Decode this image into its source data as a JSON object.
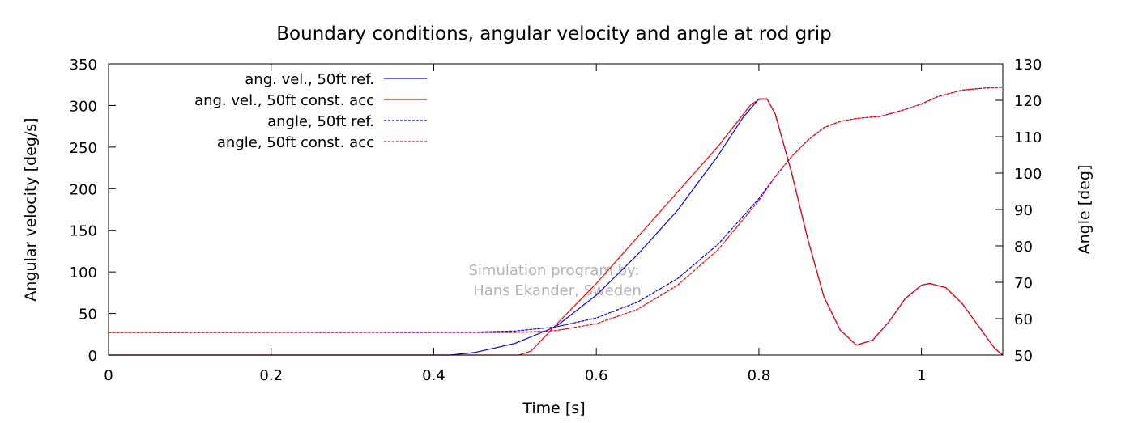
{
  "chart_data": {
    "type": "line",
    "title": "Boundary conditions, angular velocity and angle at rod grip",
    "xlabel": "Time [s]",
    "ylabel": "Angular velocity [deg/s]",
    "y2label": "Angle [deg]",
    "xlim": [
      0,
      1.1
    ],
    "ylim": [
      0,
      350
    ],
    "y2lim": [
      50,
      130
    ],
    "xticks": [
      "0",
      "0.2",
      "0.4",
      "0.6",
      "0.8",
      "1"
    ],
    "yticks": [
      "0",
      "50",
      "100",
      "150",
      "200",
      "250",
      "300",
      "350"
    ],
    "y2ticks": [
      "50",
      "60",
      "70",
      "80",
      "90",
      "100",
      "110",
      "120",
      "130"
    ],
    "grid": false,
    "legend_position": "top-left",
    "watermark": [
      "Simulation program by:",
      "Hans Ekander, Sweden"
    ],
    "series": [
      {
        "name": "ang. vel., 50ft ref.",
        "axis": "y",
        "color": "#0000ff",
        "dash": "solid",
        "points": [
          [
            0,
            0
          ],
          [
            0.42,
            0
          ],
          [
            0.45,
            3
          ],
          [
            0.5,
            14
          ],
          [
            0.55,
            34
          ],
          [
            0.6,
            72
          ],
          [
            0.65,
            120
          ],
          [
            0.7,
            174
          ],
          [
            0.75,
            240
          ],
          [
            0.78,
            285
          ],
          [
            0.8,
            308
          ],
          [
            0.81,
            308
          ],
          [
            0.82,
            290
          ],
          [
            0.84,
            220
          ],
          [
            0.86,
            140
          ],
          [
            0.88,
            70
          ],
          [
            0.9,
            30
          ],
          [
            0.92,
            12
          ],
          [
            0.94,
            18
          ],
          [
            0.96,
            40
          ],
          [
            0.98,
            68
          ],
          [
            1.0,
            84
          ],
          [
            1.01,
            86
          ],
          [
            1.03,
            81
          ],
          [
            1.05,
            62
          ],
          [
            1.07,
            35
          ],
          [
            1.09,
            8
          ],
          [
            1.1,
            0
          ]
        ]
      },
      {
        "name": "ang. vel., 50ft const. acc",
        "axis": "y",
        "color": "#ff0000",
        "dash": "solid",
        "points": [
          [
            0,
            0
          ],
          [
            0.505,
            0
          ],
          [
            0.52,
            5
          ],
          [
            0.55,
            36
          ],
          [
            0.6,
            86
          ],
          [
            0.65,
            141
          ],
          [
            0.7,
            196
          ],
          [
            0.75,
            251
          ],
          [
            0.79,
            301
          ],
          [
            0.8,
            307
          ],
          [
            0.81,
            308
          ],
          [
            0.82,
            290
          ],
          [
            0.84,
            220
          ],
          [
            0.86,
            140
          ],
          [
            0.88,
            70
          ],
          [
            0.9,
            30
          ],
          [
            0.92,
            12
          ],
          [
            0.94,
            18
          ],
          [
            0.96,
            40
          ],
          [
            0.98,
            68
          ],
          [
            1.0,
            84
          ],
          [
            1.01,
            86
          ],
          [
            1.03,
            81
          ],
          [
            1.05,
            62
          ],
          [
            1.07,
            35
          ],
          [
            1.09,
            8
          ],
          [
            1.1,
            0
          ]
        ]
      },
      {
        "name": "angle, 50ft ref.",
        "axis": "y2",
        "color": "#0000ff",
        "dash": "dashed",
        "points": [
          [
            0,
            56.2
          ],
          [
            0.45,
            56.3
          ],
          [
            0.5,
            56.6
          ],
          [
            0.55,
            57.7
          ],
          [
            0.6,
            60.2
          ],
          [
            0.65,
            64.5
          ],
          [
            0.7,
            71
          ],
          [
            0.75,
            80.5
          ],
          [
            0.8,
            93
          ],
          [
            0.82,
            99
          ],
          [
            0.84,
            104.5
          ],
          [
            0.86,
            109
          ],
          [
            0.88,
            112.5
          ],
          [
            0.9,
            114.2
          ],
          [
            0.92,
            115
          ],
          [
            0.95,
            115.6
          ],
          [
            0.98,
            117.5
          ],
          [
            1.0,
            119
          ],
          [
            1.02,
            121
          ],
          [
            1.05,
            122.8
          ],
          [
            1.08,
            123.4
          ],
          [
            1.1,
            123.6
          ]
        ]
      },
      {
        "name": "angle, 50ft const. acc",
        "axis": "y2",
        "color": "#ff0000",
        "dash": "dashed",
        "points": [
          [
            0,
            56.2
          ],
          [
            0.5,
            56.2
          ],
          [
            0.55,
            56.7
          ],
          [
            0.6,
            58.6
          ],
          [
            0.65,
            62.5
          ],
          [
            0.7,
            69.2
          ],
          [
            0.75,
            79
          ],
          [
            0.8,
            92.5
          ],
          [
            0.82,
            99
          ],
          [
            0.84,
            104.5
          ],
          [
            0.86,
            109
          ],
          [
            0.88,
            112.5
          ],
          [
            0.9,
            114.2
          ],
          [
            0.92,
            115
          ],
          [
            0.95,
            115.6
          ],
          [
            0.98,
            117.5
          ],
          [
            1.0,
            119
          ],
          [
            1.02,
            121
          ],
          [
            1.05,
            122.8
          ],
          [
            1.08,
            123.4
          ],
          [
            1.1,
            123.6
          ]
        ]
      }
    ]
  }
}
